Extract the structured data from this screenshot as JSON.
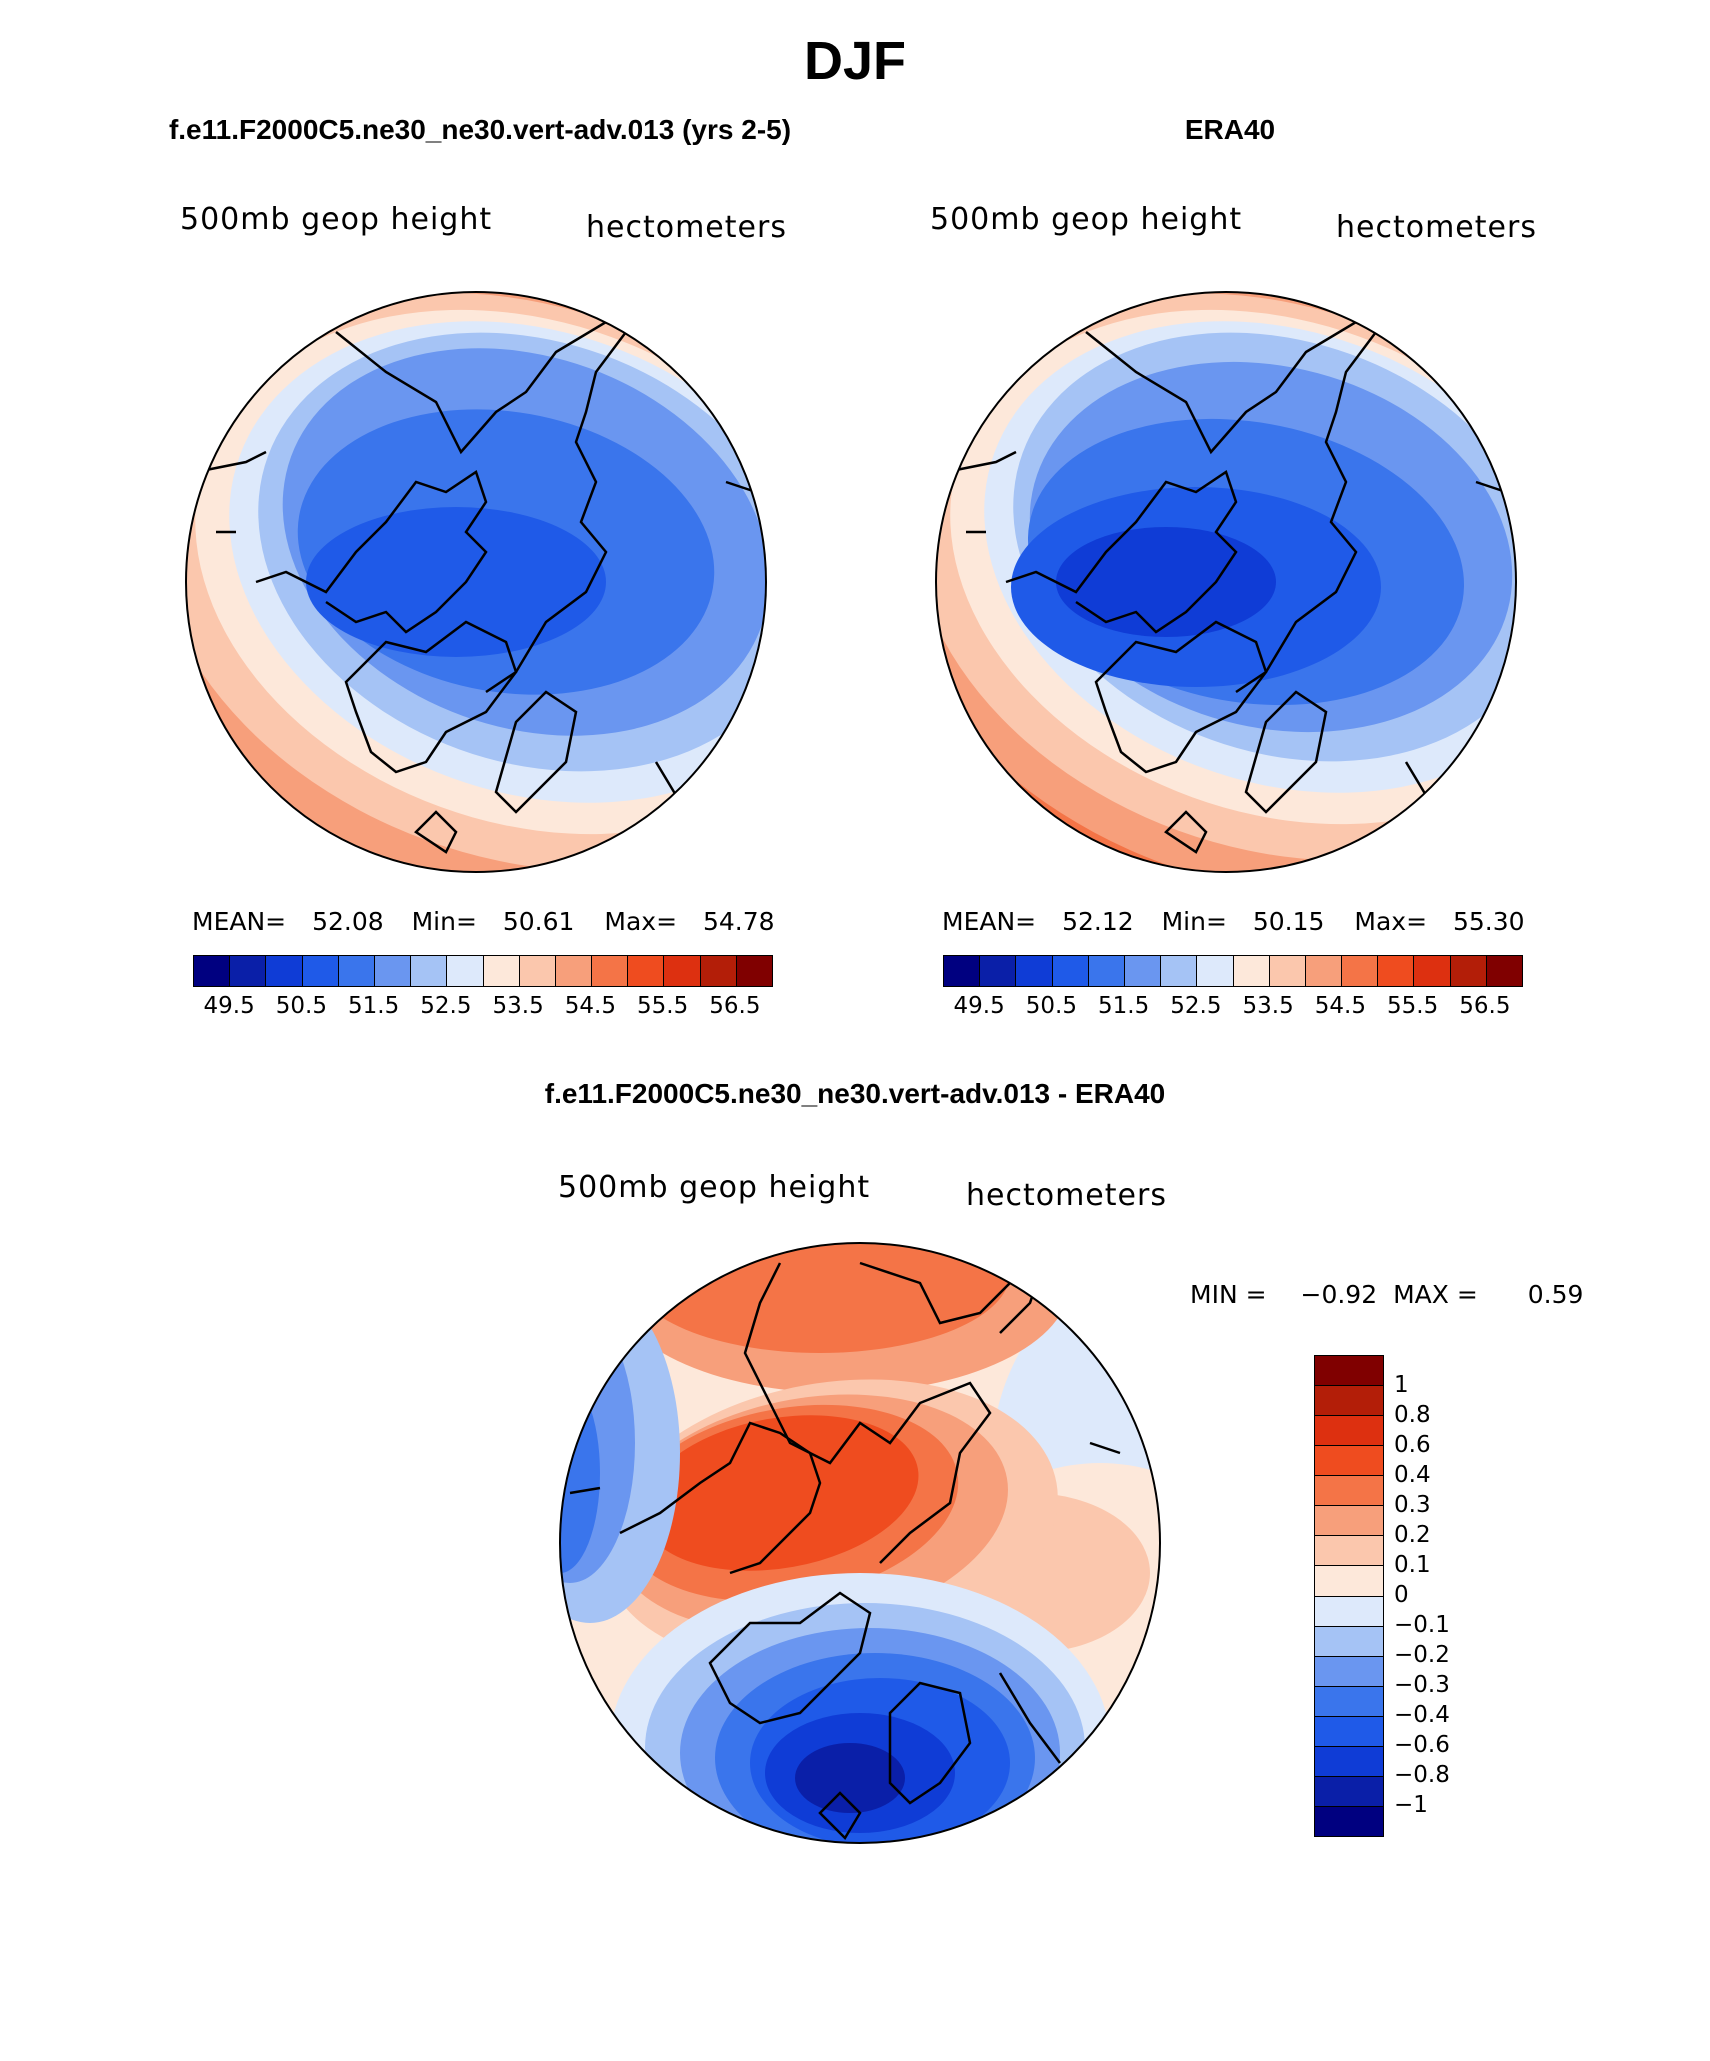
{
  "page": {
    "title": "DJF",
    "diff_title": "f.e11.F2000C5.ne30_ne30.vert-adv.013 - ERA40"
  },
  "panels": [
    {
      "title": "f.e11.F2000C5.ne30_ne30.vert-adv.013 (yrs 2-5)",
      "left_label": "500mb  geop  height",
      "right_label": "hectometers",
      "stats": {
        "mean_label": "MEAN=",
        "mean": "52.08",
        "min_label": "Min=",
        "min": "50.61",
        "max_label": "Max=",
        "max": "54.78"
      },
      "contour_levels": [
        49.5,
        50.0,
        50.5,
        51.0,
        51.5,
        52.0,
        52.5,
        53.0,
        53.5,
        54.0,
        54.5,
        55.0,
        55.5,
        56.0,
        56.5
      ]
    },
    {
      "title": "ERA40",
      "left_label": "500mb  geop  height",
      "right_label": "hectometers",
      "stats": {
        "mean_label": "MEAN=",
        "mean": "52.12",
        "min_label": "Min=",
        "min": "50.15",
        "max_label": "Max=",
        "max": "55.30"
      },
      "contour_levels": [
        49.5,
        50.0,
        50.5,
        51.0,
        51.5,
        52.0,
        52.5,
        53.0,
        53.5,
        54.0,
        54.5,
        55.0,
        55.5,
        56.0,
        56.5
      ]
    }
  ],
  "horizontal_colorbar": {
    "colors": [
      "#000080",
      "#0a1fa8",
      "#0f3cd6",
      "#1f5ae8",
      "#3a75ec",
      "#6a96f0",
      "#a5c3f5",
      "#dde9fb",
      "#fde8da",
      "#fbc7ad",
      "#f79f7b",
      "#f47447",
      "#ef4c1f",
      "#dd3010",
      "#b31e08",
      "#800000"
    ],
    "labels": [
      "49.5",
      "50.5",
      "51.5",
      "52.5",
      "53.5",
      "54.5",
      "55.5",
      "56.5"
    ]
  },
  "diff_panel": {
    "left_label": "500mb  geop  height",
    "right_label": "hectometers",
    "min_label": "MIN =",
    "min": "−0.92",
    "max_label": "MAX =",
    "max": "0.59"
  },
  "vertical_colorbar": {
    "colors": [
      "#800000",
      "#b31e08",
      "#dd3010",
      "#ef4c1f",
      "#f47447",
      "#f79f7b",
      "#fbc7ad",
      "#fde8da",
      "#dde9fb",
      "#a5c3f5",
      "#6a96f0",
      "#3a75ec",
      "#1f5ae8",
      "#0f3cd6",
      "#0a1fa8",
      "#000080"
    ],
    "labels": [
      "1",
      "0.8",
      "0.6",
      "0.4",
      "0.3",
      "0.2",
      "0.1",
      "0",
      "−0.1",
      "−0.2",
      "−0.3",
      "−0.4",
      "−0.6",
      "−0.8",
      "−1"
    ]
  }
}
